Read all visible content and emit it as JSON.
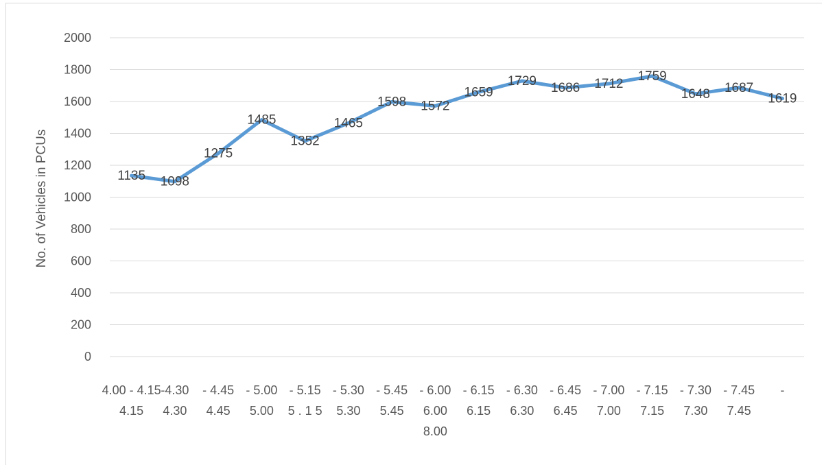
{
  "chart_data": {
    "type": "line",
    "title": "",
    "xlabel": "",
    "ylabel": "No. of Vehicles in PCUs",
    "ylim": [
      0,
      2000
    ],
    "y_ticks": [
      0,
      200,
      400,
      600,
      800,
      1000,
      1200,
      1400,
      1600,
      1800,
      2000
    ],
    "grid": true,
    "legend": "none",
    "categories": [
      "4.00 - 4.15",
      "4.15 - 4.30",
      "4.30 - 4.45",
      "4.45 - 5.00",
      "5.00 - 5.15",
      "5.15 - 5.30",
      "5.30 - 5.45",
      "5.45 - 6.00",
      "6.00 - 6.15",
      "6.15 - 6.30",
      "6.30 - 6.45",
      "6.45 - 7.00",
      "7.00 - 7.15",
      "7.15 - 7.30",
      "7.30 - 7.45",
      "7.45 - 8.00"
    ],
    "x_tick_lines": [
      [
        "4.00 - 4.15",
        "4.15",
        ""
      ],
      [
        "-4.30",
        "4.30",
        ""
      ],
      [
        "- 4.45",
        "4.45",
        ""
      ],
      [
        "- 5.00",
        "5.00",
        ""
      ],
      [
        "- 5.15",
        "5 . 1 5",
        ""
      ],
      [
        "- 5.30",
        "5.30",
        ""
      ],
      [
        "- 5.45",
        "5.45",
        ""
      ],
      [
        "- 6.00",
        "6.00",
        "8.00"
      ],
      [
        "- 6.15",
        "6.15",
        ""
      ],
      [
        "- 6.30",
        "6.30",
        ""
      ],
      [
        "- 6.45",
        "6.45",
        ""
      ],
      [
        "- 7.00",
        "7.00",
        ""
      ],
      [
        "- 7.15",
        "7.15",
        ""
      ],
      [
        "- 7.30",
        "7.30",
        ""
      ],
      [
        "- 7.45",
        "7.45",
        ""
      ],
      [
        "-",
        "",
        ""
      ]
    ],
    "series": [
      {
        "color": "#5b9bd5",
        "values": [
          1135,
          1098,
          1275,
          1485,
          1352,
          1465,
          1598,
          1572,
          1659,
          1729,
          1686,
          1712,
          1759,
          1648,
          1687,
          1619
        ]
      }
    ]
  }
}
